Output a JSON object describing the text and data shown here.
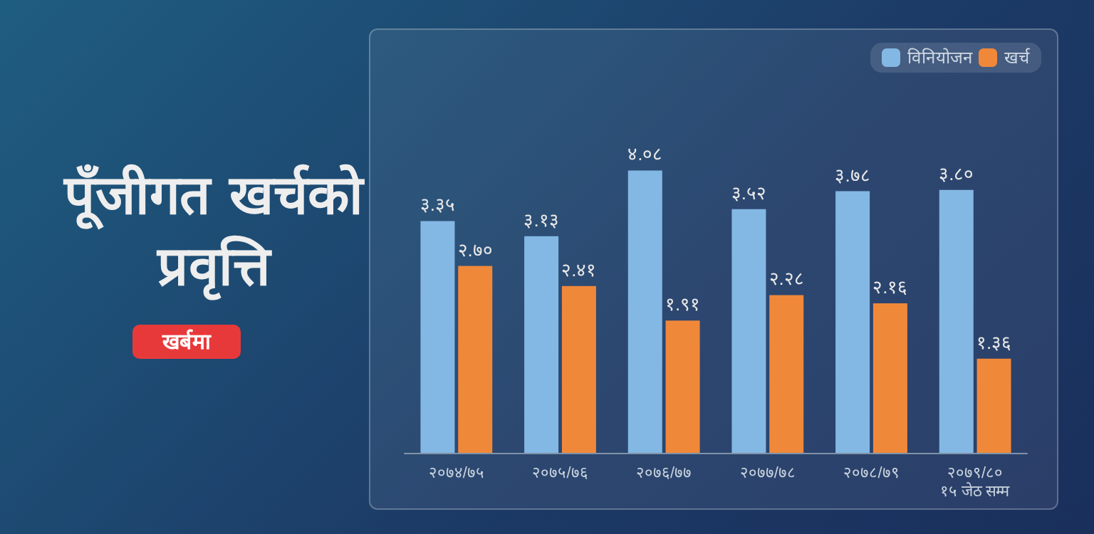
{
  "chart_data": {
    "type": "bar",
    "title": "पूँजीगत खर्चको प्रवृत्ति",
    "subtitle": "खर्बमा",
    "categories": [
      "२०७४/७५",
      "२०७५/७६",
      "२०७६/७७",
      "२०७७/७८",
      "२०७८/७९",
      "२०७९/८०\n१५ जेठ सम्म"
    ],
    "series": [
      {
        "name": "विनियोजन",
        "color": "#84b8e4",
        "values": [
          3.35,
          3.13,
          4.08,
          3.52,
          3.78,
          3.8
        ],
        "value_labels": [
          "३.३५",
          "३.१३",
          "४.०८",
          "३.५२",
          "३.७८",
          "३.८०"
        ]
      },
      {
        "name": "खर्च",
        "color": "#f0883a",
        "values": [
          2.7,
          2.41,
          1.91,
          2.28,
          2.16,
          1.36
        ],
        "value_labels": [
          "२.७०",
          "२.४१",
          "१.९१",
          "२.२८",
          "२.१६",
          "१.३६"
        ]
      }
    ],
    "legend": "top right",
    "grid": false
  }
}
